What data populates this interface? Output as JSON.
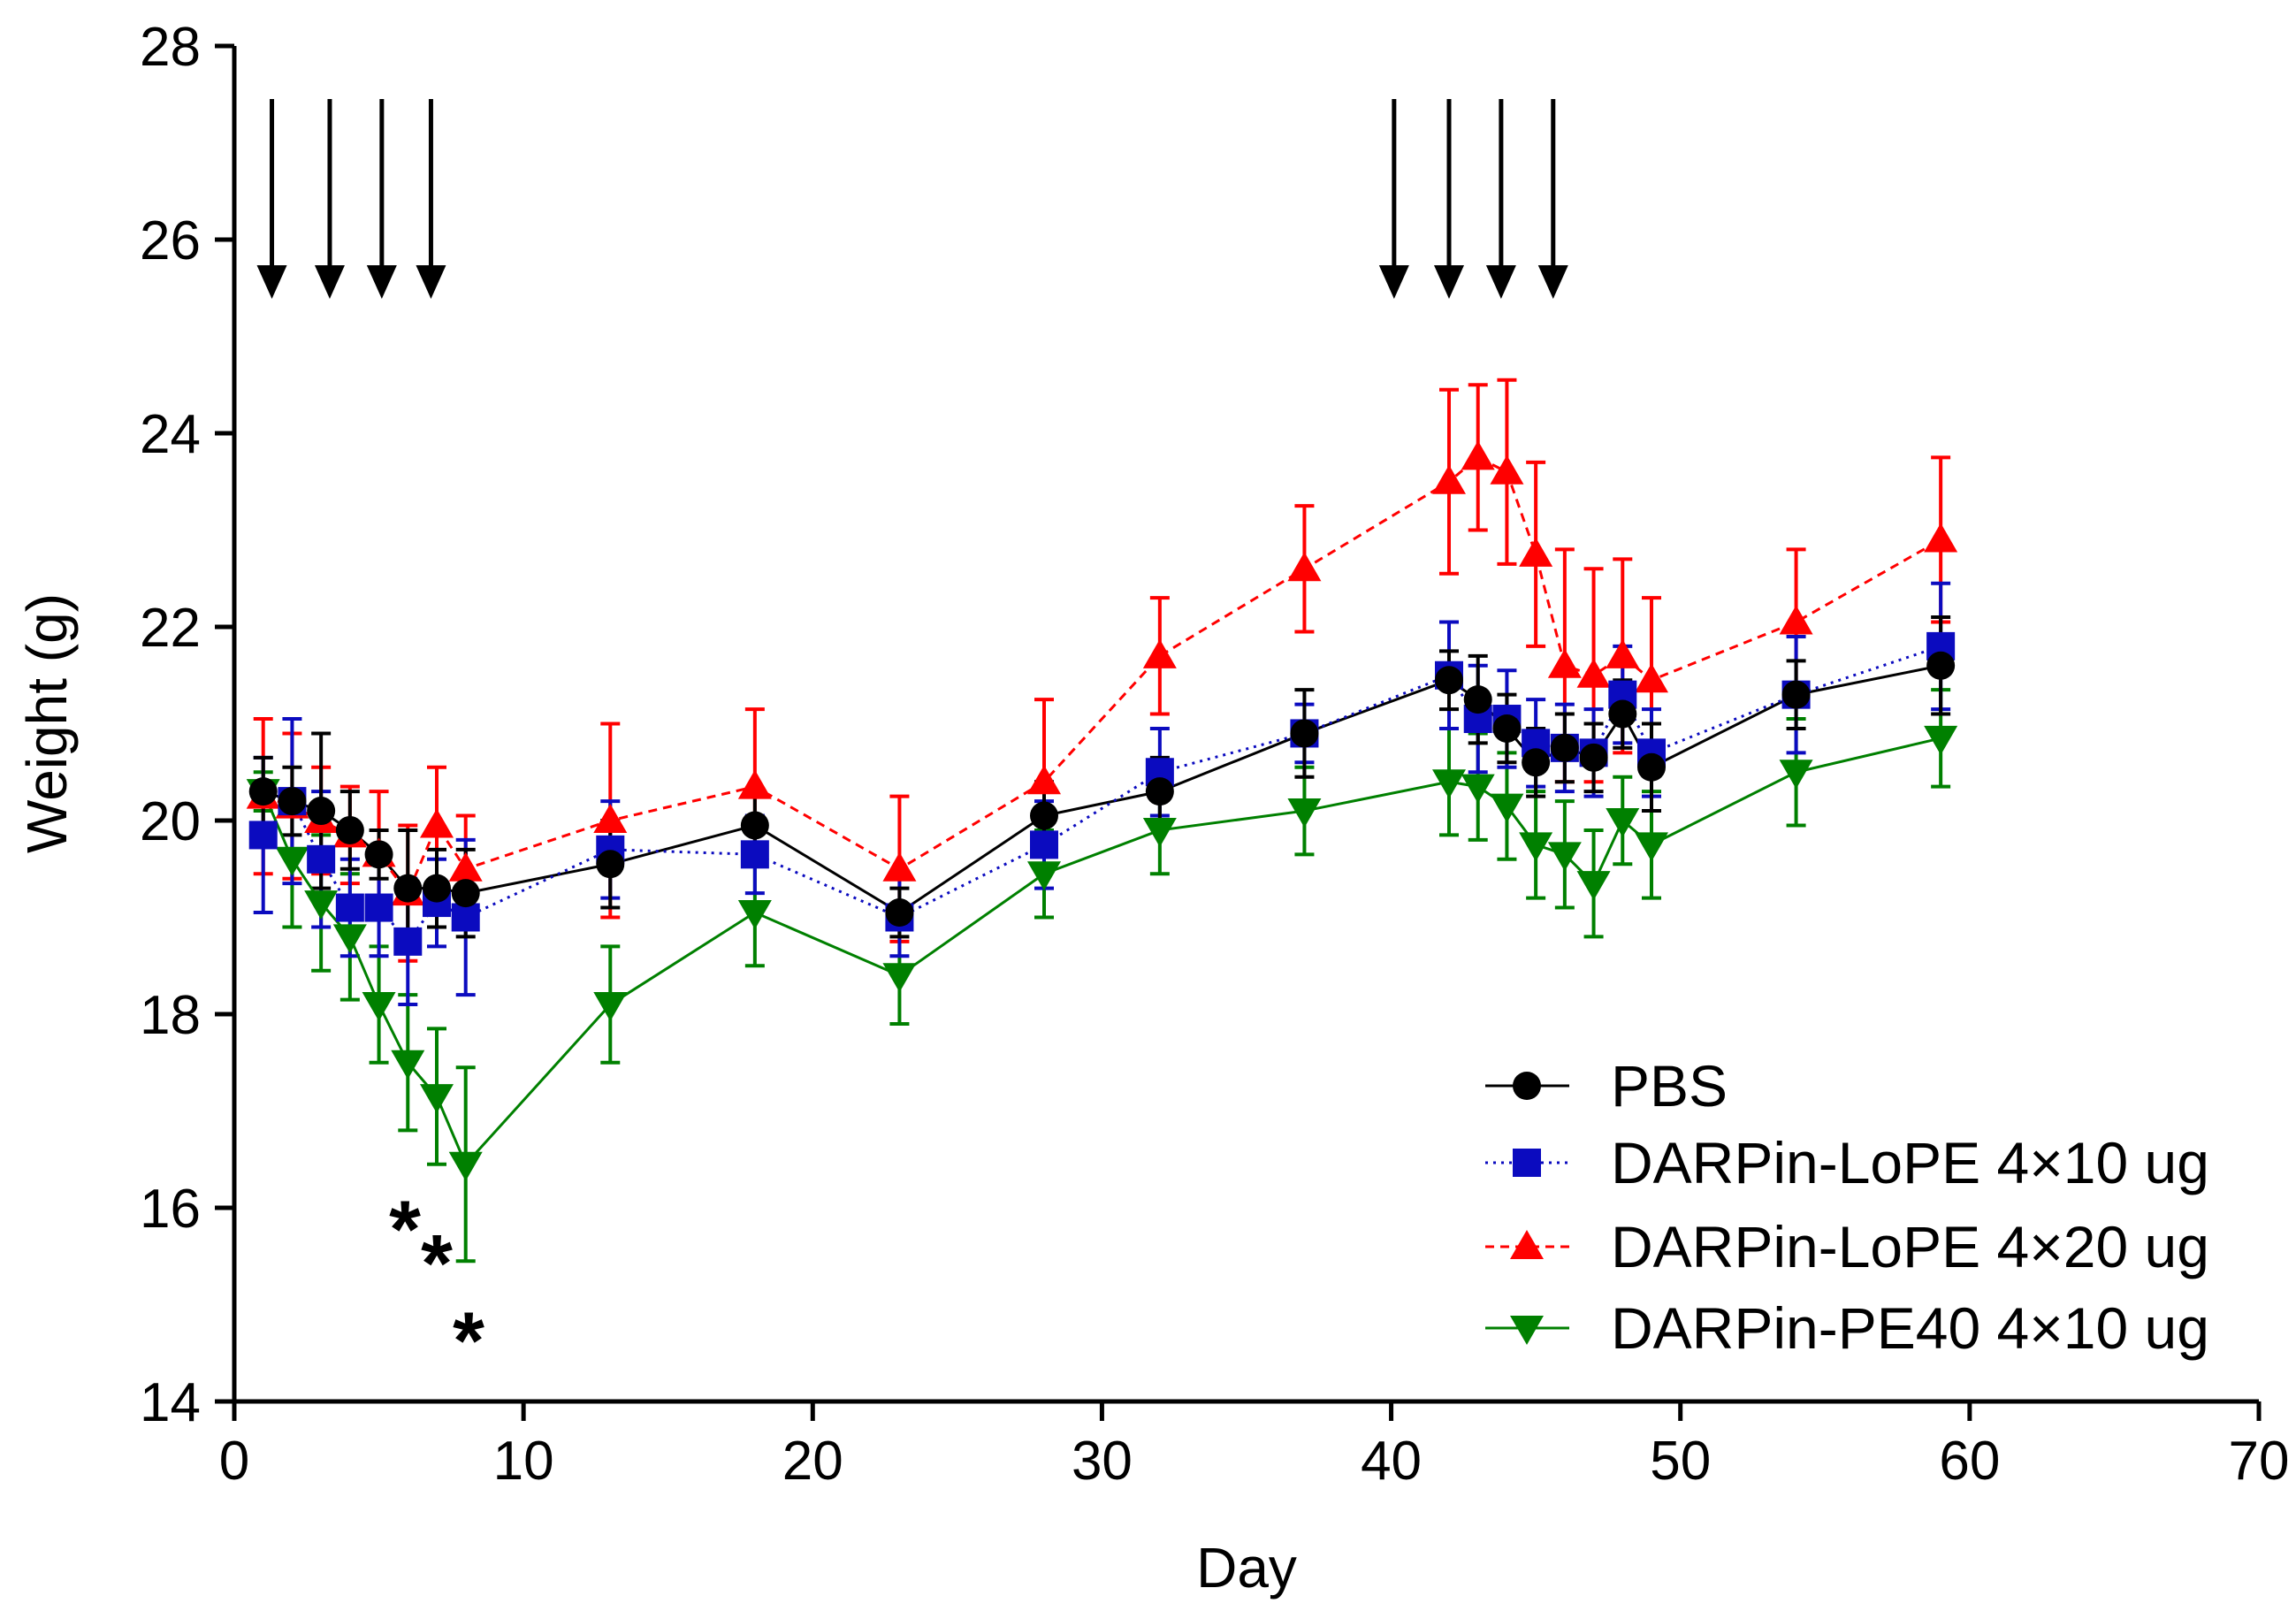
{
  "chart_data": {
    "type": "line",
    "title": "",
    "xlabel": "Day",
    "ylabel": "Weight (g)",
    "xlim": [
      0,
      70
    ],
    "ylim": [
      14,
      28
    ],
    "xticks": [
      0,
      10,
      20,
      30,
      40,
      50,
      60,
      70
    ],
    "yticks": [
      14,
      16,
      18,
      20,
      22,
      24,
      26,
      28
    ],
    "grid": false,
    "legend_position": "bottom-right",
    "series": [
      {
        "name": "PBS",
        "marker": "circle",
        "line": "solid",
        "color": "#000000",
        "x": [
          1,
          2,
          3,
          4,
          5,
          6,
          7,
          8,
          13,
          18,
          23,
          28,
          32,
          37,
          42,
          43,
          44,
          45,
          46,
          47,
          48,
          49,
          54,
          59
        ],
        "y": [
          20.3,
          20.2,
          20.1,
          19.9,
          19.65,
          19.3,
          19.3,
          19.25,
          19.55,
          19.95,
          19.05,
          20.05,
          20.3,
          20.9,
          21.45,
          21.25,
          20.95,
          20.6,
          20.75,
          20.65,
          21.1,
          20.55,
          21.3,
          21.6
        ],
        "err": [
          0.35,
          0.35,
          0.8,
          0.4,
          0.25,
          0.6,
          0.4,
          0.45,
          0.45,
          0.3,
          0.25,
          0.35,
          0.35,
          0.45,
          0.3,
          0.45,
          0.35,
          0.35,
          0.35,
          0.35,
          0.35,
          0.45,
          0.35,
          0.5
        ]
      },
      {
        "name": "DARPin-LoPE 4×10 ug",
        "marker": "square",
        "line": "dotted",
        "color": "#0b0bbf",
        "x": [
          1,
          2,
          3,
          4,
          5,
          6,
          7,
          8,
          13,
          18,
          23,
          28,
          32,
          37,
          42,
          43,
          44,
          45,
          46,
          47,
          48,
          49,
          54,
          59
        ],
        "y": [
          19.85,
          20.2,
          19.6,
          19.1,
          19.1,
          18.75,
          19.15,
          19.0,
          19.7,
          19.65,
          19.0,
          19.75,
          20.5,
          20.9,
          21.5,
          21.05,
          21.05,
          20.8,
          20.75,
          20.7,
          21.3,
          20.7,
          21.3,
          21.8
        ],
        "err": [
          0.8,
          0.85,
          0.7,
          0.5,
          0.5,
          0.65,
          0.45,
          0.8,
          0.5,
          0.4,
          0.4,
          0.45,
          0.45,
          0.3,
          0.55,
          0.55,
          0.5,
          0.45,
          0.45,
          0.45,
          0.5,
          0.45,
          0.6,
          0.65
        ]
      },
      {
        "name": "DARPin-LoPE 4×20 ug",
        "marker": "triangle-up",
        "line": "dashed",
        "color": "#ff0000",
        "x": [
          1,
          2,
          3,
          4,
          5,
          6,
          7,
          8,
          13,
          18,
          23,
          28,
          32,
          37,
          42,
          43,
          44,
          45,
          46,
          47,
          48,
          49,
          54,
          59
        ],
        "y": [
          20.25,
          20.15,
          20.0,
          19.85,
          19.65,
          19.25,
          19.95,
          19.5,
          20.0,
          20.35,
          19.5,
          20.4,
          21.7,
          22.6,
          23.5,
          23.75,
          23.6,
          22.75,
          21.6,
          21.5,
          21.7,
          21.45,
          22.05,
          22.9
        ],
        "err": [
          0.8,
          0.75,
          0.55,
          0.5,
          0.65,
          0.7,
          0.6,
          0.55,
          1.0,
          0.8,
          0.75,
          0.85,
          0.6,
          0.65,
          0.95,
          0.75,
          0.95,
          0.95,
          1.2,
          1.1,
          1.0,
          0.85,
          0.75,
          0.85
        ]
      },
      {
        "name": "DARPin-PE40 4×10 ug",
        "marker": "triangle-down",
        "line": "solid",
        "color": "#008000",
        "x": [
          1,
          2,
          3,
          4,
          5,
          6,
          7,
          8,
          13,
          18,
          23,
          28,
          32,
          37,
          42,
          43,
          44,
          45,
          46,
          47,
          48,
          49,
          54,
          59
        ],
        "y": [
          20.3,
          19.6,
          19.15,
          18.8,
          18.1,
          17.5,
          17.15,
          16.45,
          18.1,
          19.05,
          18.4,
          19.45,
          19.9,
          20.1,
          20.4,
          20.35,
          20.15,
          19.75,
          19.65,
          19.35,
          20.0,
          19.75,
          20.5,
          20.85
        ],
        "err": [
          0.2,
          0.7,
          0.7,
          0.65,
          0.6,
          0.7,
          0.7,
          1.0,
          0.6,
          0.55,
          0.5,
          0.45,
          0.45,
          0.45,
          0.55,
          0.55,
          0.55,
          0.55,
          0.55,
          0.55,
          0.45,
          0.55,
          0.55,
          0.5
        ]
      }
    ],
    "annotations": {
      "arrows_days": [
        1.3,
        3.3,
        5.1,
        6.8,
        40.1,
        42.0,
        43.8,
        45.6
      ],
      "stars": [
        {
          "text": "*",
          "x": 5.9,
          "y": 15.9
        },
        {
          "text": "*",
          "x": 7.0,
          "y": 15.55
        },
        {
          "text": "*",
          "x": 8.1,
          "y": 14.75
        }
      ]
    }
  }
}
